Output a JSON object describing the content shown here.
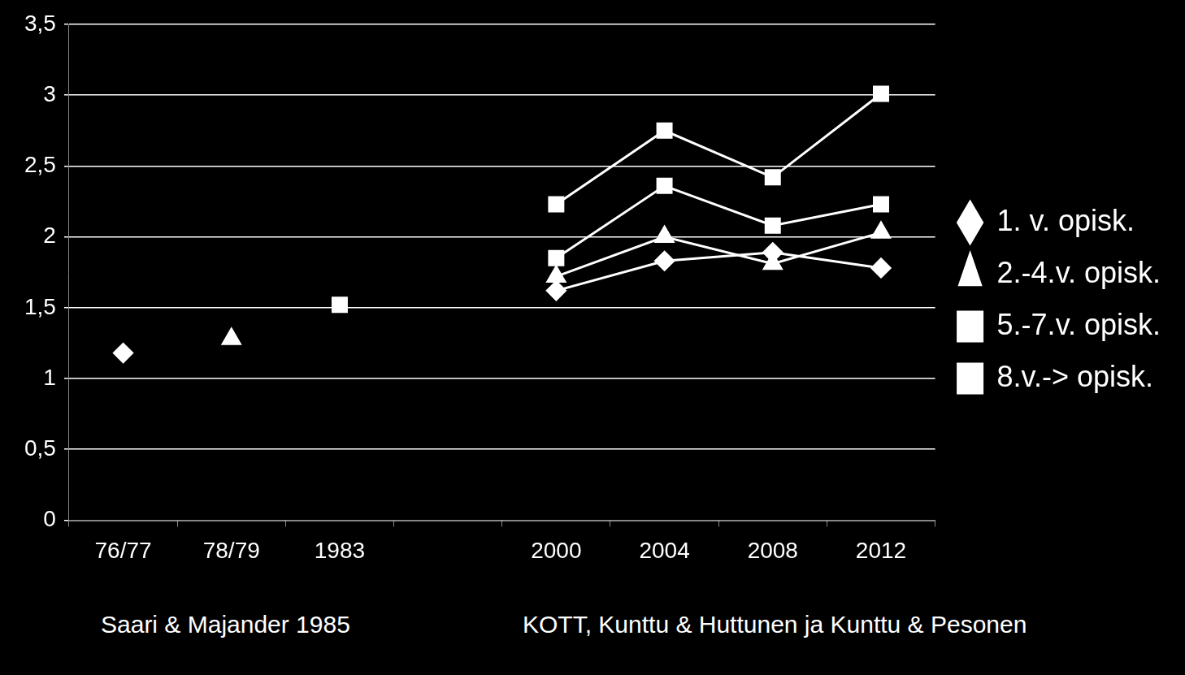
{
  "chart_data": {
    "type": "line",
    "categories": [
      "76/77",
      "78/79",
      "1983",
      null,
      "2000",
      "2004",
      "2008",
      "2012"
    ],
    "series": [
      {
        "name": "1. v. opisk.",
        "color": "#ffffff",
        "marker": "diamond",
        "values": [
          1.18,
          null,
          null,
          null,
          1.62,
          1.83,
          1.89,
          1.78
        ]
      },
      {
        "name": "2.-4.v. opisk.",
        "color": "#ffffff",
        "marker": "triangle",
        "values": [
          null,
          1.28,
          null,
          null,
          1.72,
          2.0,
          1.81,
          2.03
        ]
      },
      {
        "name": "5.-7.v. opisk.",
        "color": "#ffffff",
        "marker": "square",
        "values": [
          null,
          null,
          1.52,
          null,
          1.85,
          2.36,
          2.08,
          2.23
        ]
      },
      {
        "name": "8.v.-> opisk.",
        "color": "#ffffff",
        "marker": "square",
        "values": [
          null,
          null,
          null,
          null,
          2.23,
          2.75,
          2.42,
          3.01
        ]
      }
    ],
    "ylim": [
      0,
      3.5
    ],
    "yticks": [
      0,
      {
        "value": 0.5,
        "label": "0,5"
      },
      1,
      {
        "value": 1.5,
        "label": "1,5"
      },
      2,
      {
        "value": 2.5,
        "label": "2,5"
      },
      3,
      {
        "value": 3.5,
        "label": "3,5"
      }
    ],
    "grid": true,
    "legend": "right",
    "annotations": [
      "Saari & Majander 1985",
      "KOTT, Kunttu & Huttunen ja Kunttu & Pesonen"
    ]
  }
}
